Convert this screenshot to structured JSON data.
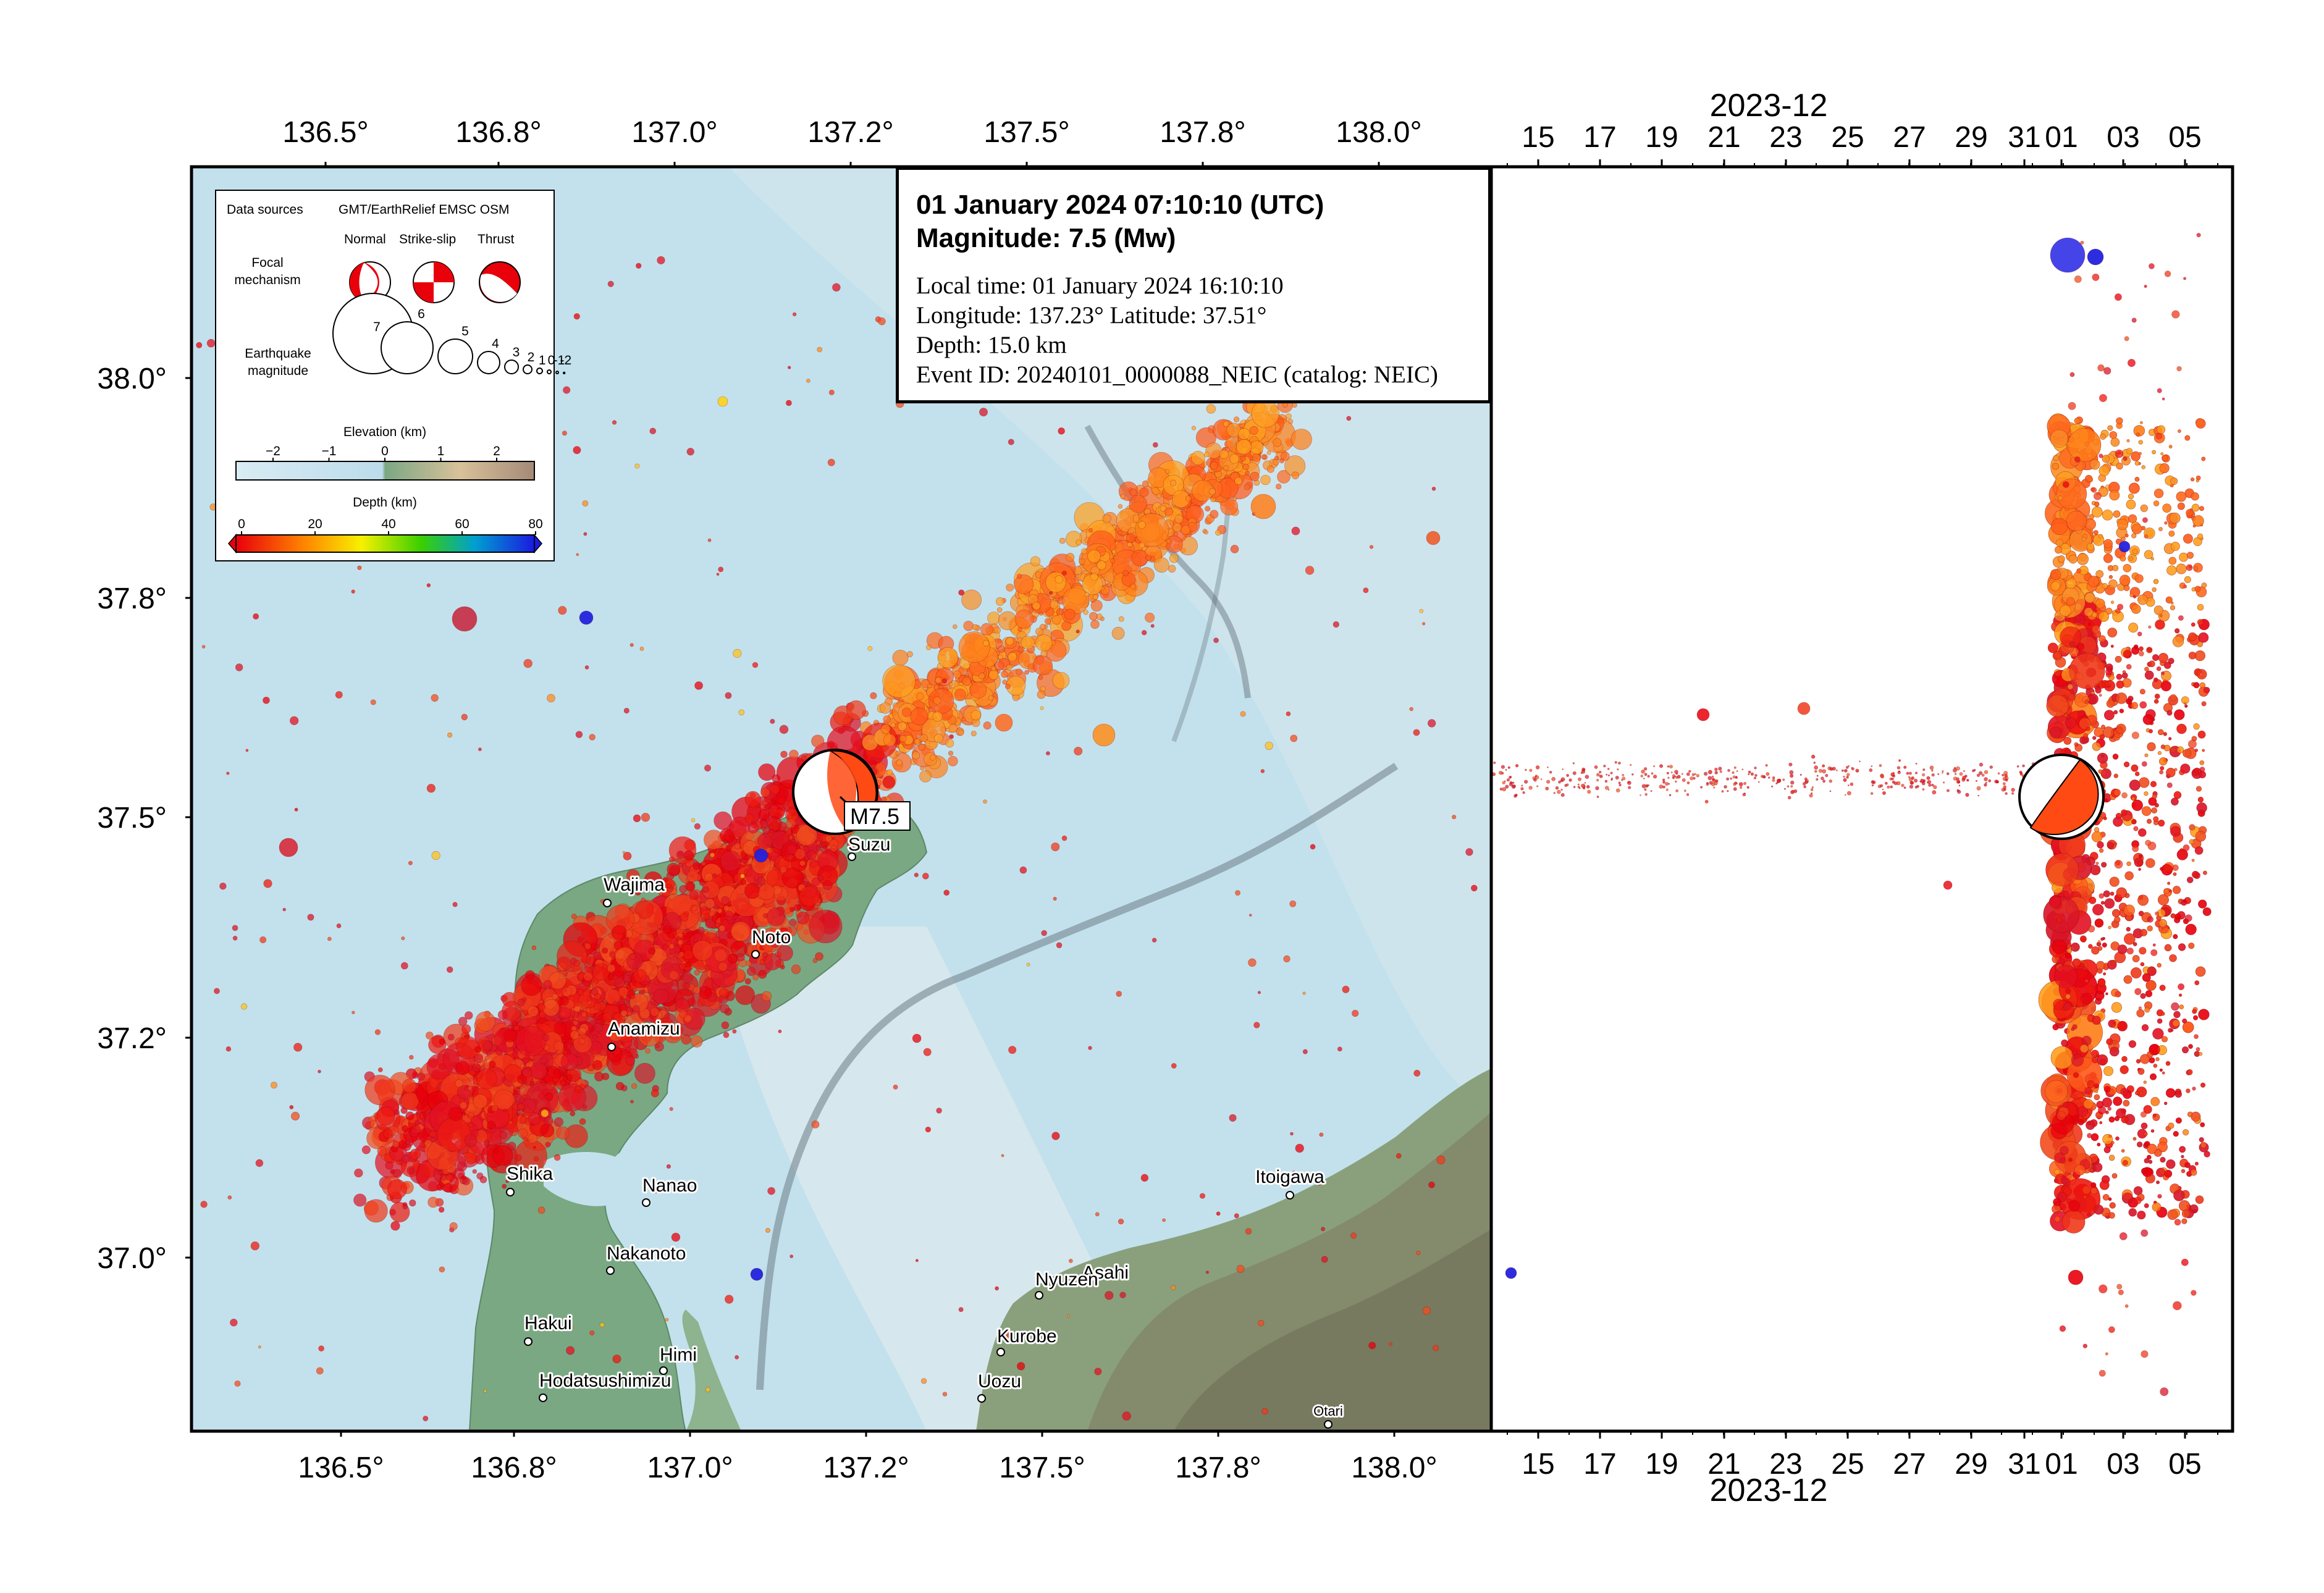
{
  "lon_ticks": [
    "136.5°",
    "136.8°",
    "137.0°",
    "137.2°",
    "137.5°",
    "137.8°",
    "138.0°"
  ],
  "lat_ticks": [
    "38.0°",
    "37.8°",
    "37.5°",
    "37.2°",
    "37.0°"
  ],
  "date_ticks": [
    "15",
    "17",
    "19",
    "21",
    "23",
    "25",
    "27",
    "29",
    "31",
    "01",
    "03",
    "05"
  ],
  "date_axis_label": "2023-12",
  "event": {
    "title_line1": "01 January 2024 07:10:10 (UTC)",
    "title_line2": "Magnitude: 7.5 (Mw)",
    "local_time": "Local time: 01 January 2024 16:10:10",
    "coordinates": "Longitude: 137.23°  Latitude: 37.51°",
    "depth": "Depth: 15.0 km",
    "event_id": "Event ID: 20240101_0000088_NEIC (catalog: NEIC)",
    "mainshock_label": "M7.5",
    "longitude": 137.23,
    "latitude": 37.51,
    "time": "2024-01-01T07:10:10Z",
    "magnitude": 7.5,
    "depth_km": 15.0
  },
  "legend": {
    "data_sources_label": "Data sources",
    "data_sources_value": "GMT/EarthRelief EMSC OSM",
    "mechanism_label_1": "Focal",
    "mechanism_label_2": "mechanism",
    "mech_types": [
      "Normal",
      "Strike-slip",
      "Thrust"
    ],
    "magnitude_label_1": "Earthquake",
    "magnitude_label_2": "magnitude",
    "magnitudes": [
      "7",
      "6",
      "5",
      "4",
      "3",
      "2",
      "1",
      "0",
      "-1",
      "-2"
    ],
    "elevation_title": "Elevation (km)",
    "elevation_ticks": [
      "−2",
      "−1",
      "0",
      "1",
      "2"
    ],
    "depth_title": "Depth (km)",
    "depth_ticks": [
      "0",
      "20",
      "40",
      "60",
      "80"
    ]
  },
  "cities": [
    {
      "name": "Suzu"
    },
    {
      "name": "Wajima"
    },
    {
      "name": "Noto"
    },
    {
      "name": "Anamizu"
    },
    {
      "name": "Shika"
    },
    {
      "name": "Nanao"
    },
    {
      "name": "Nakanoto"
    },
    {
      "name": "Hakui"
    },
    {
      "name": "Himi"
    },
    {
      "name": "Hodatsushimizu"
    },
    {
      "name": "Itoigawa"
    },
    {
      "name": "Asahi"
    },
    {
      "name": "Nyuzen"
    },
    {
      "name": "Kurobe"
    },
    {
      "name": "Uozu"
    },
    {
      "name": "Otari"
    }
  ],
  "colors": {
    "sea": "#c3e1ec",
    "land": "#7aa883",
    "depth_shallow": "#e8000b",
    "depth_mid": "#ff8c1a",
    "depth_deep": "#2233ee"
  }
}
